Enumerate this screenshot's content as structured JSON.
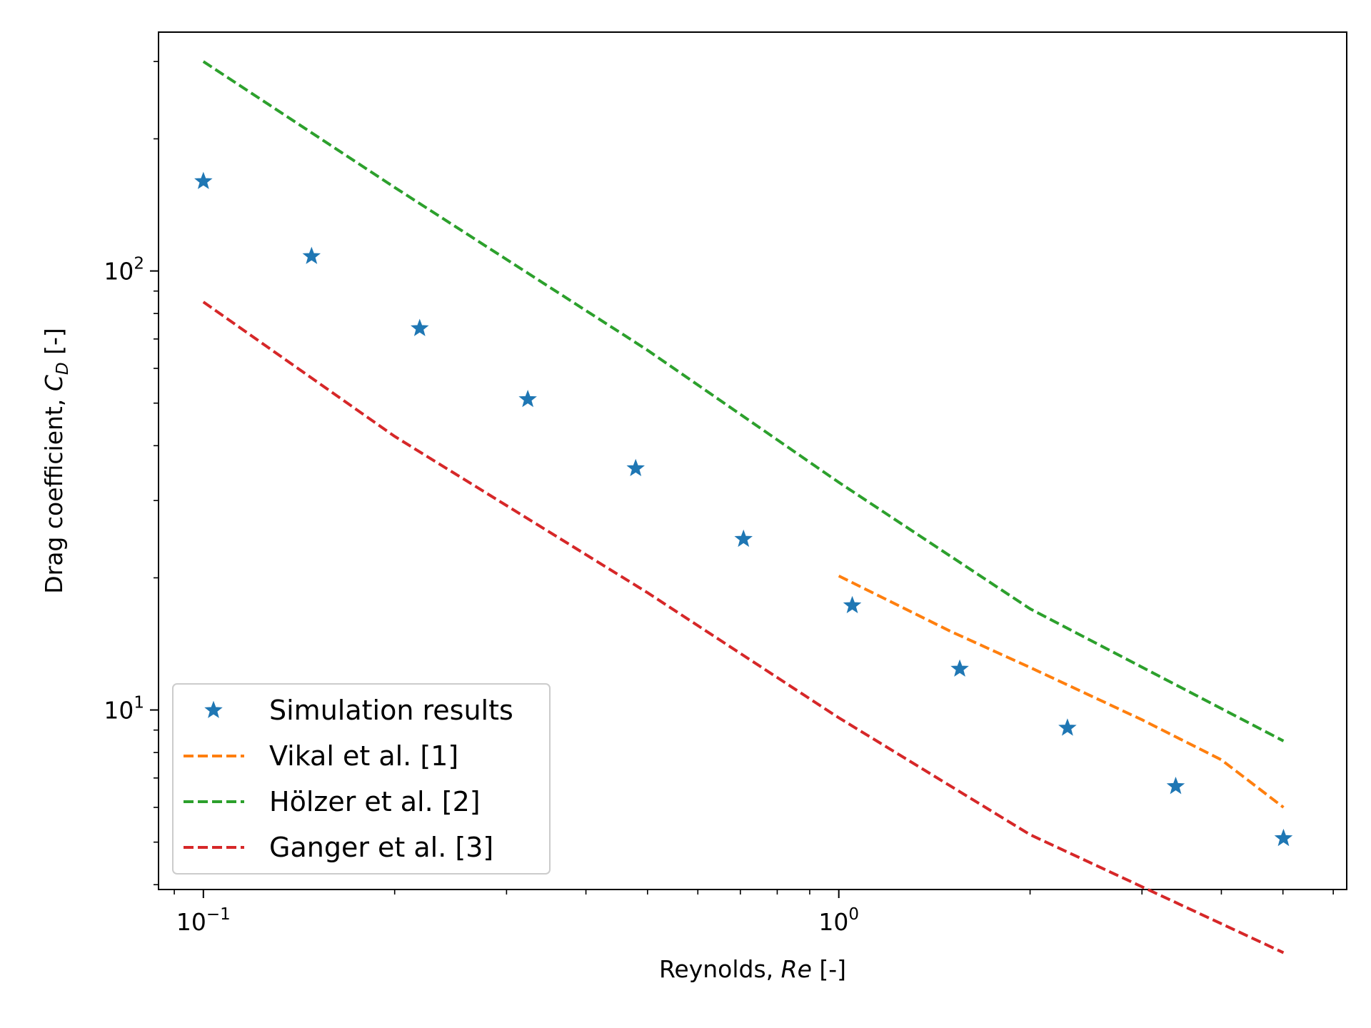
{
  "chart_data": {
    "type": "scatter",
    "xscale": "log",
    "yscale": "log",
    "xlim": [
      0.085,
      6.3
    ],
    "ylim": [
      3.9,
      350
    ],
    "xlabel": {
      "prefix": "Reynolds, ",
      "italic": "Re",
      "suffix": " [-]"
    },
    "ylabel": {
      "prefix": "Drag coefficient, ",
      "italic": "C",
      "subscript": "D",
      "suffix": " [-]"
    },
    "x_ticks": [
      {
        "value": 0.1,
        "base": "10",
        "exp": "−1"
      },
      {
        "value": 1,
        "base": "10",
        "exp": "0"
      }
    ],
    "y_ticks": [
      {
        "value": 10,
        "base": "10",
        "exp": "1"
      },
      {
        "value": 100,
        "base": "10",
        "exp": "2"
      }
    ],
    "legend_position": "lower-left",
    "series": [
      {
        "name": "Simulation results",
        "kind": "scatter",
        "marker": "star",
        "color": "#1f77b4",
        "x": [
          0.1,
          0.148,
          0.219,
          0.324,
          0.479,
          0.708,
          1.05,
          1.55,
          2.29,
          3.39,
          5.01
        ],
        "y": [
          160,
          108,
          74,
          51,
          35.5,
          24.5,
          17.3,
          12.4,
          9.1,
          6.7,
          5.1
        ]
      },
      {
        "name": "Vikal et al. [1]",
        "kind": "line",
        "dash": "dashed",
        "color": "#ff7f0e",
        "x": [
          1,
          1.5,
          2,
          3,
          4,
          5.01
        ],
        "y": [
          20.2,
          15.1,
          12.5,
          9.5,
          7.7,
          6.0
        ]
      },
      {
        "name": "Hölzer et al. [2]",
        "kind": "line",
        "dash": "dashed",
        "color": "#2ca02c",
        "x": [
          0.1,
          0.2,
          0.5,
          1,
          2,
          5.01
        ],
        "y": [
          300,
          155,
          66,
          33,
          17,
          8.5
        ]
      },
      {
        "name": "Ganger et al. [3]",
        "kind": "line",
        "dash": "dashed",
        "color": "#d62728",
        "x": [
          0.1,
          0.2,
          0.5,
          1,
          2,
          5.01
        ],
        "y": [
          85,
          42,
          18.5,
          9.6,
          5.2,
          2.8
        ]
      }
    ]
  }
}
